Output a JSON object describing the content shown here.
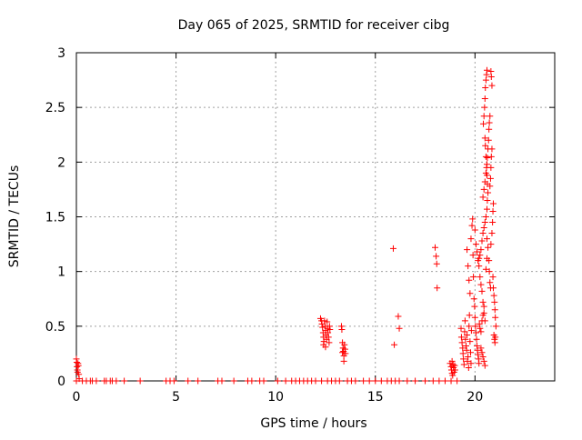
{
  "chart_data": {
    "type": "scatter",
    "title": "Day 065 of 2025, SRMTID for receiver cibg",
    "xlabel": "GPS time / hours",
    "ylabel": "SRMTID / TECUs",
    "xlim": [
      0,
      24
    ],
    "ylim": [
      0,
      3
    ],
    "xticks": [
      0,
      5,
      10,
      15,
      20
    ],
    "yticks": [
      0,
      0.5,
      1,
      1.5,
      2,
      2.5,
      3
    ],
    "xtick_labels": [
      "0",
      "5",
      "10",
      "15",
      "20"
    ],
    "ytick_labels": [
      "0",
      "0.5",
      "1",
      "1.5",
      "2",
      "2.5",
      "3"
    ],
    "grid": true,
    "marker": "+",
    "color": "#ff0000",
    "series": [
      {
        "name": "SRMTID",
        "points": [
          [
            0.0,
            0.2
          ],
          [
            0.02,
            0.17
          ],
          [
            0.03,
            0.13
          ],
          [
            0.05,
            0.1
          ],
          [
            0.06,
            0.08
          ],
          [
            0.08,
            0.16
          ],
          [
            0.1,
            0.14
          ],
          [
            0.12,
            0.06
          ],
          [
            0.14,
            0.02
          ],
          [
            0.0,
            0.0
          ],
          [
            0.3,
            0.0
          ],
          [
            0.5,
            0.0
          ],
          [
            0.7,
            0.0
          ],
          [
            0.8,
            0.0
          ],
          [
            1.0,
            0.0
          ],
          [
            1.4,
            0.0
          ],
          [
            1.5,
            0.0
          ],
          [
            1.7,
            0.0
          ],
          [
            1.8,
            0.0
          ],
          [
            2.0,
            0.0
          ],
          [
            2.4,
            0.0
          ],
          [
            3.2,
            0.0
          ],
          [
            4.5,
            0.0
          ],
          [
            4.7,
            0.0
          ],
          [
            4.9,
            0.0
          ],
          [
            5.6,
            0.0
          ],
          [
            6.1,
            0.0
          ],
          [
            7.1,
            0.0
          ],
          [
            7.3,
            0.0
          ],
          [
            7.9,
            0.0
          ],
          [
            8.6,
            0.0
          ],
          [
            8.8,
            0.0
          ],
          [
            9.2,
            0.0
          ],
          [
            9.4,
            0.0
          ],
          [
            10.1,
            0.0
          ],
          [
            10.5,
            0.0
          ],
          [
            10.8,
            0.0
          ],
          [
            11.0,
            0.0
          ],
          [
            11.2,
            0.0
          ],
          [
            11.4,
            0.0
          ],
          [
            11.6,
            0.0
          ],
          [
            11.8,
            0.0
          ],
          [
            12.0,
            0.0
          ],
          [
            12.3,
            0.0
          ],
          [
            12.6,
            0.0
          ],
          [
            12.8,
            0.0
          ],
          [
            13.0,
            0.0
          ],
          [
            13.2,
            0.0
          ],
          [
            13.6,
            0.0
          ],
          [
            13.8,
            0.0
          ],
          [
            14.0,
            0.0
          ],
          [
            14.4,
            0.0
          ],
          [
            14.7,
            0.0
          ],
          [
            15.0,
            0.0
          ],
          [
            15.3,
            0.0
          ],
          [
            15.6,
            0.0
          ],
          [
            15.8,
            0.0
          ],
          [
            16.0,
            0.0
          ],
          [
            16.2,
            0.0
          ],
          [
            16.6,
            0.0
          ],
          [
            17.0,
            0.0
          ],
          [
            17.5,
            0.0
          ],
          [
            17.9,
            0.0
          ],
          [
            18.2,
            0.0
          ],
          [
            18.5,
            0.0
          ],
          [
            18.8,
            0.0
          ],
          [
            19.1,
            0.0
          ],
          [
            12.25,
            0.57
          ],
          [
            12.3,
            0.55
          ],
          [
            12.32,
            0.52
          ],
          [
            12.35,
            0.49
          ],
          [
            12.38,
            0.44
          ],
          [
            12.4,
            0.4
          ],
          [
            12.42,
            0.36
          ],
          [
            12.45,
            0.55
          ],
          [
            12.48,
            0.5
          ],
          [
            12.5,
            0.46
          ],
          [
            12.52,
            0.42
          ],
          [
            12.55,
            0.38
          ],
          [
            12.58,
            0.54
          ],
          [
            12.6,
            0.48
          ],
          [
            12.62,
            0.44
          ],
          [
            12.65,
            0.4
          ],
          [
            12.68,
            0.35
          ],
          [
            12.7,
            0.5
          ],
          [
            12.72,
            0.47
          ],
          [
            12.4,
            0.33
          ],
          [
            12.5,
            0.31
          ],
          [
            13.3,
            0.5
          ],
          [
            13.32,
            0.47
          ],
          [
            13.35,
            0.35
          ],
          [
            13.38,
            0.3
          ],
          [
            13.4,
            0.27
          ],
          [
            13.42,
            0.23
          ],
          [
            13.45,
            0.33
          ],
          [
            13.48,
            0.29
          ],
          [
            13.5,
            0.25
          ],
          [
            13.42,
            0.18
          ],
          [
            13.35,
            0.26
          ],
          [
            15.9,
            1.21
          ],
          [
            15.95,
            0.33
          ],
          [
            16.15,
            0.59
          ],
          [
            16.2,
            0.48
          ],
          [
            18.0,
            1.22
          ],
          [
            18.05,
            1.14
          ],
          [
            18.08,
            1.07
          ],
          [
            18.1,
            0.85
          ],
          [
            18.75,
            0.16
          ],
          [
            18.8,
            0.13
          ],
          [
            18.82,
            0.1
          ],
          [
            18.85,
            0.07
          ],
          [
            18.88,
            0.05
          ],
          [
            18.9,
            0.15
          ],
          [
            18.92,
            0.12
          ],
          [
            18.95,
            0.08
          ],
          [
            18.98,
            0.14
          ],
          [
            19.0,
            0.1
          ],
          [
            18.85,
            0.18
          ],
          [
            19.3,
            0.48
          ],
          [
            19.32,
            0.4
          ],
          [
            19.35,
            0.35
          ],
          [
            19.38,
            0.3
          ],
          [
            19.4,
            0.25
          ],
          [
            19.42,
            0.2
          ],
          [
            19.45,
            0.15
          ],
          [
            19.48,
            0.45
          ],
          [
            19.5,
            0.55
          ],
          [
            19.52,
            0.38
          ],
          [
            19.55,
            0.32
          ],
          [
            19.58,
            0.28
          ],
          [
            19.6,
            0.42
          ],
          [
            19.62,
            0.18
          ],
          [
            19.65,
            0.22
          ],
          [
            19.68,
            0.12
          ],
          [
            19.7,
            0.5
          ],
          [
            19.72,
            0.6
          ],
          [
            19.75,
            0.36
          ],
          [
            19.78,
            0.26
          ],
          [
            19.8,
            0.16
          ],
          [
            19.82,
            0.46
          ],
          [
            19.6,
            1.2
          ],
          [
            19.65,
            1.05
          ],
          [
            19.7,
            0.92
          ],
          [
            19.75,
            0.8
          ],
          [
            19.8,
            1.3
          ],
          [
            19.85,
            1.42
          ],
          [
            19.88,
            1.48
          ],
          [
            19.9,
            1.15
          ],
          [
            19.92,
            0.95
          ],
          [
            19.95,
            0.75
          ],
          [
            19.98,
            0.68
          ],
          [
            20.0,
            0.58
          ],
          [
            20.02,
            0.5
          ],
          [
            20.05,
            0.44
          ],
          [
            20.08,
            0.38
          ],
          [
            20.1,
            0.32
          ],
          [
            20.12,
            0.28
          ],
          [
            20.15,
            0.24
          ],
          [
            20.18,
            0.2
          ],
          [
            20.2,
            0.16
          ],
          [
            20.22,
            0.52
          ],
          [
            20.25,
            0.48
          ],
          [
            20.0,
            1.38
          ],
          [
            20.05,
            1.25
          ],
          [
            20.1,
            1.18
          ],
          [
            20.15,
            1.1
          ],
          [
            20.2,
            1.05
          ],
          [
            20.25,
            0.95
          ],
          [
            20.3,
            0.88
          ],
          [
            20.35,
            0.82
          ],
          [
            20.4,
            0.72
          ],
          [
            20.45,
            0.62
          ],
          [
            20.5,
            0.55
          ],
          [
            20.2,
            1.12
          ],
          [
            20.25,
            1.15
          ],
          [
            20.3,
            1.2
          ],
          [
            20.35,
            1.28
          ],
          [
            20.4,
            1.35
          ],
          [
            20.45,
            1.4
          ],
          [
            20.5,
            1.45
          ],
          [
            20.55,
            1.5
          ],
          [
            20.6,
            1.57
          ],
          [
            20.62,
            1.65
          ],
          [
            20.65,
            1.72
          ],
          [
            20.4,
            1.68
          ],
          [
            20.45,
            1.75
          ],
          [
            20.5,
            1.82
          ],
          [
            20.55,
            1.9
          ],
          [
            20.6,
            1.98
          ],
          [
            20.62,
            2.04
          ],
          [
            20.65,
            2.12
          ],
          [
            20.68,
            2.2
          ],
          [
            20.7,
            2.3
          ],
          [
            20.72,
            2.36
          ],
          [
            20.75,
            2.42
          ],
          [
            20.42,
            2.35
          ],
          [
            20.45,
            2.42
          ],
          [
            20.48,
            2.5
          ],
          [
            20.5,
            2.58
          ],
          [
            20.52,
            2.68
          ],
          [
            20.55,
            2.75
          ],
          [
            20.58,
            2.8
          ],
          [
            20.6,
            2.84
          ],
          [
            20.8,
            2.83
          ],
          [
            20.82,
            2.78
          ],
          [
            20.85,
            2.7
          ],
          [
            20.5,
            2.22
          ],
          [
            20.52,
            2.15
          ],
          [
            20.55,
            2.05
          ],
          [
            20.58,
            1.95
          ],
          [
            20.6,
            1.88
          ],
          [
            20.62,
            1.8
          ],
          [
            20.75,
            1.78
          ],
          [
            20.78,
            1.85
          ],
          [
            20.8,
            1.95
          ],
          [
            20.82,
            2.05
          ],
          [
            20.85,
            2.12
          ],
          [
            20.6,
            1.3
          ],
          [
            20.65,
            1.22
          ],
          [
            20.7,
            1.1
          ],
          [
            20.72,
            1.0
          ],
          [
            20.75,
            0.9
          ],
          [
            20.78,
            0.85
          ],
          [
            20.8,
            1.25
          ],
          [
            20.85,
            1.35
          ],
          [
            20.88,
            1.45
          ],
          [
            20.9,
            1.55
          ],
          [
            20.92,
            1.62
          ],
          [
            20.9,
            0.95
          ],
          [
            20.92,
            0.85
          ],
          [
            20.95,
            0.78
          ],
          [
            20.98,
            0.72
          ],
          [
            21.0,
            0.65
          ],
          [
            21.02,
            0.58
          ],
          [
            21.05,
            0.5
          ],
          [
            20.95,
            0.42
          ],
          [
            20.98,
            0.38
          ],
          [
            21.0,
            0.35
          ],
          [
            21.02,
            0.4
          ],
          [
            20.3,
            0.3
          ],
          [
            20.35,
            0.26
          ],
          [
            20.4,
            0.22
          ],
          [
            20.45,
            0.18
          ],
          [
            20.5,
            0.14
          ],
          [
            20.3,
            0.45
          ],
          [
            20.35,
            0.55
          ],
          [
            20.4,
            0.6
          ],
          [
            20.45,
            0.68
          ],
          [
            20.55,
            1.02
          ],
          [
            20.6,
            1.12
          ]
        ]
      }
    ]
  }
}
